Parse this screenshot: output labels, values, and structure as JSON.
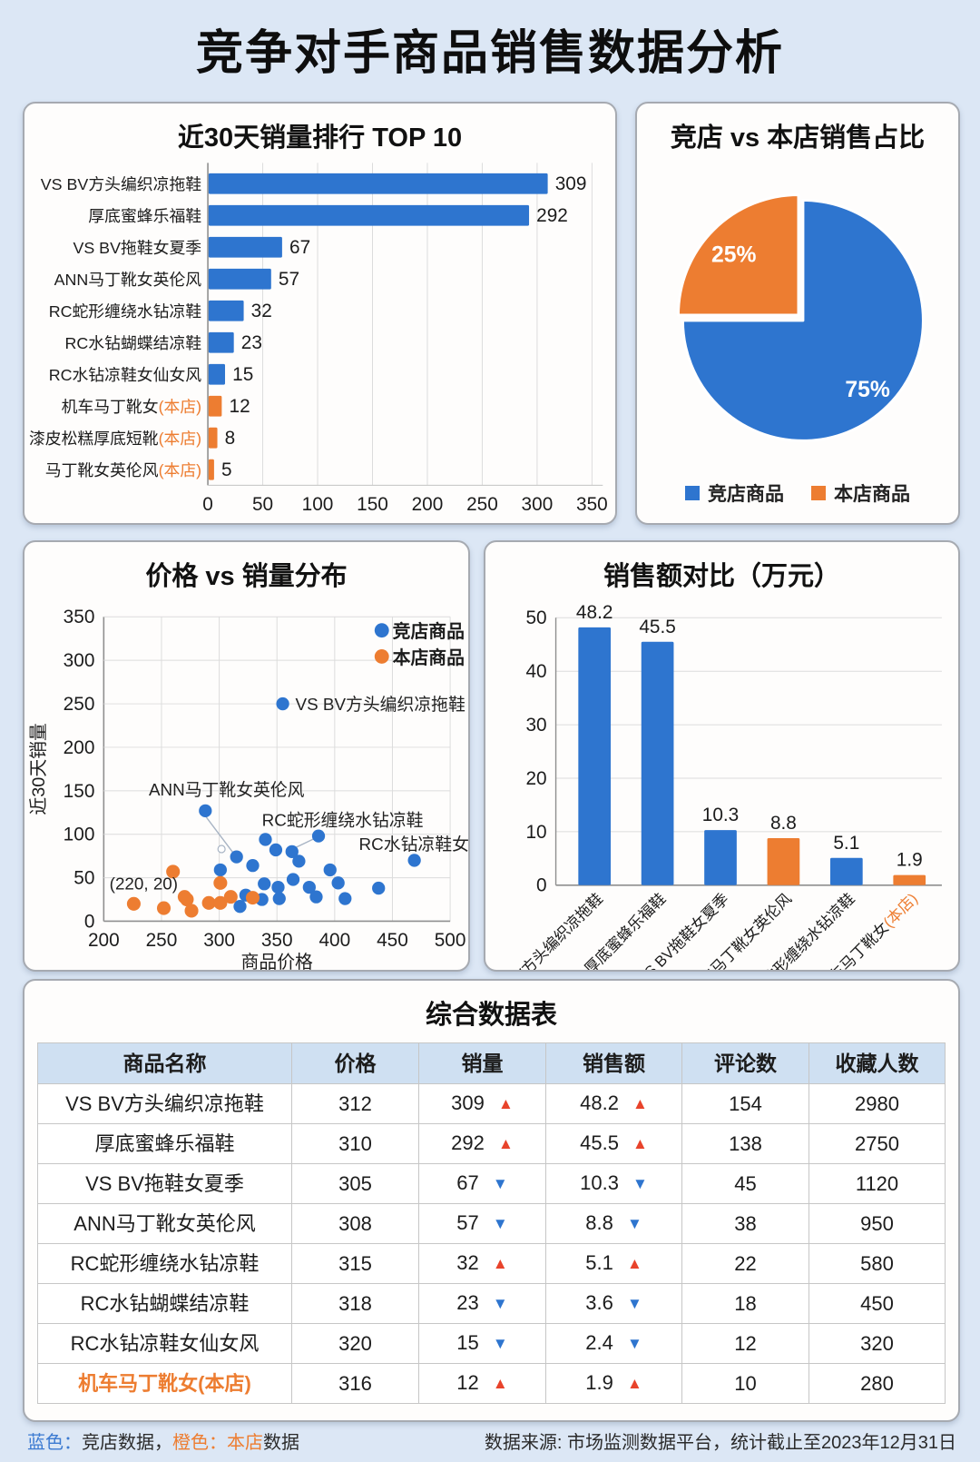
{
  "page": {
    "title": "竞争对手商品销售数据分析",
    "background": "#dce7f5",
    "blue": "#2E75CF",
    "orange": "#ED7D31",
    "red": "#E8432B"
  },
  "chart_data": [
    {
      "id": "sales-top10",
      "type": "bar",
      "orientation": "horizontal",
      "title": "近30天销量排行 TOP 10",
      "xlim": [
        0,
        350
      ],
      "xticks": [
        0,
        50,
        100,
        150,
        200,
        250,
        300,
        350
      ],
      "items": [
        {
          "label": "VS BV方头编织凉拖鞋",
          "value": 309,
          "own": false
        },
        {
          "label": "厚底蜜蜂乐福鞋",
          "value": 292,
          "own": false
        },
        {
          "label": "VS BV拖鞋女夏季",
          "value": 67,
          "own": false
        },
        {
          "label": "ANN马丁靴女英伦风",
          "value": 57,
          "own": false
        },
        {
          "label": "RC蛇形缠绕水钻凉鞋",
          "value": 32,
          "own": false
        },
        {
          "label": "RC水钻蝴蝶结凉鞋",
          "value": 23,
          "own": false
        },
        {
          "label": "RC水钻凉鞋女仙女风",
          "value": 15,
          "own": false
        },
        {
          "label": "机车马丁靴女(本店)",
          "value": 12,
          "own": true
        },
        {
          "label": "漆皮松糕厚底短靴(本店)",
          "value": 8,
          "own": true
        },
        {
          "label": "马丁靴女英伦风(本店)",
          "value": 5,
          "own": true
        }
      ]
    },
    {
      "id": "share-pie",
      "type": "pie",
      "title": "竞店 vs 本店销售占比",
      "slices": [
        {
          "label": "竞店商品",
          "value": 75,
          "pct": "75%",
          "color_key": "blue"
        },
        {
          "label": "本店商品",
          "value": 25,
          "pct": "25%",
          "color_key": "orange",
          "exploded": true
        }
      ]
    },
    {
      "id": "price-sales-scatter",
      "type": "scatter",
      "title": "价格 vs 销量分布",
      "xlabel": "商品价格",
      "ylabel": "近30天销量",
      "xlim": [
        200,
        500
      ],
      "ylim": [
        0,
        350
      ],
      "xticks": [
        200,
        250,
        300,
        350,
        400,
        450,
        500
      ],
      "yticks": [
        0,
        50,
        100,
        150,
        200,
        250,
        300,
        350
      ],
      "series": [
        {
          "name": "竞店商品",
          "color_key": "blue",
          "points": [
            [
              355,
              250
            ],
            [
              288,
              127
            ],
            [
              315,
              74
            ],
            [
              340,
              94
            ],
            [
              349,
              82
            ],
            [
              363,
              80
            ],
            [
              386,
              98
            ],
            [
              329,
              64
            ],
            [
              369,
              69
            ],
            [
              301,
              59
            ],
            [
              396,
              59
            ],
            [
              364,
              48
            ],
            [
              339,
              43
            ],
            [
              403,
              44
            ],
            [
              378,
              39
            ],
            [
              438,
              38
            ],
            [
              351,
              39
            ],
            [
              384,
              28
            ],
            [
              352,
              26
            ],
            [
              323,
              30
            ],
            [
              409,
              26
            ],
            [
              318,
              17
            ],
            [
              337,
              25
            ],
            [
              469,
              70
            ]
          ]
        },
        {
          "name": "本店商品",
          "color_key": "orange",
          "points": [
            [
              260,
              57
            ],
            [
              226,
              20
            ],
            [
              252,
              15
            ],
            [
              270,
              28
            ],
            [
              272,
              25
            ],
            [
              276,
              12
            ],
            [
              291,
              21
            ],
            [
              301,
              44
            ],
            [
              301,
              21
            ],
            [
              310,
              28
            ],
            [
              329,
              27
            ]
          ]
        }
      ],
      "annotations": [
        {
          "text": "VS BV方头编织凉拖鞋",
          "x": 366,
          "y": 250
        },
        {
          "text": "ANN马丁靴女英伦风",
          "x": 239,
          "y": 152
        },
        {
          "text": "RC蛇形缠绕水钻凉鞋",
          "x": 337,
          "y": 117
        },
        {
          "text": "RC水钻凉鞋女仙女风",
          "x": 421,
          "y": 89
        },
        {
          "text": "(220, 20)",
          "x": 205,
          "y": 44
        }
      ],
      "leaders": [
        {
          "from": [
            288,
            121
          ],
          "to": [
            313,
            77
          ],
          "circle": [
            302,
            83
          ]
        },
        {
          "from": [
            362,
            82
          ],
          "to": [
            384,
            96
          ]
        }
      ]
    },
    {
      "id": "revenue-compare",
      "type": "bar",
      "orientation": "vertical",
      "title": "销售额对比（万元）",
      "ylim": [
        0,
        50
      ],
      "yticks": [
        0,
        10,
        20,
        30,
        40,
        50
      ],
      "items": [
        {
          "label": "VS BV方头编织凉拖鞋",
          "value": 48.2,
          "color_key": "blue",
          "own": false
        },
        {
          "label": "厚底蜜蜂乐福鞋",
          "value": 45.5,
          "color_key": "blue",
          "own": false
        },
        {
          "label": "VS BV拖鞋女夏季",
          "value": 10.3,
          "color_key": "blue",
          "own": false
        },
        {
          "label": "ANN马丁靴女英伦风",
          "value": 8.8,
          "color_key": "orange",
          "own": false
        },
        {
          "label": "RC蛇形缠绕水钻凉鞋",
          "value": 5.1,
          "color_key": "blue",
          "own": false
        },
        {
          "label": "机车马丁靴女(本店)",
          "value": 1.9,
          "color_key": "orange",
          "own": true
        }
      ]
    },
    {
      "id": "summary-table",
      "type": "table",
      "title": "综合数据表",
      "headers": [
        "商品名称",
        "价格",
        "销量",
        "销售额",
        "评论数",
        "收藏人数"
      ],
      "rows": [
        {
          "name": "VS BV方头编织凉拖鞋",
          "price": "312",
          "sales": "309",
          "sales_trend": "up",
          "revenue": "48.2",
          "revenue_trend": "up",
          "reviews": "154",
          "favorites": "2980",
          "own": false
        },
        {
          "name": "厚底蜜蜂乐福鞋",
          "price": "310",
          "sales": "292",
          "sales_trend": "up",
          "revenue": "45.5",
          "revenue_trend": "up",
          "reviews": "138",
          "favorites": "2750",
          "own": false
        },
        {
          "name": "VS BV拖鞋女夏季",
          "price": "305",
          "sales": "67",
          "sales_trend": "down",
          "revenue": "10.3",
          "revenue_trend": "down",
          "reviews": "45",
          "favorites": "1120",
          "own": false
        },
        {
          "name": "ANN马丁靴女英伦风",
          "price": "308",
          "sales": "57",
          "sales_trend": "down",
          "revenue": "8.8",
          "revenue_trend": "down",
          "reviews": "38",
          "favorites": "950",
          "own": false
        },
        {
          "name": "RC蛇形缠绕水钻凉鞋",
          "price": "315",
          "sales": "32",
          "sales_trend": "up",
          "revenue": "5.1",
          "revenue_trend": "up",
          "reviews": "22",
          "favorites": "580",
          "own": false
        },
        {
          "name": "RC水钻蝴蝶结凉鞋",
          "price": "318",
          "sales": "23",
          "sales_trend": "down",
          "revenue": "3.6",
          "revenue_trend": "down",
          "reviews": "18",
          "favorites": "450",
          "own": false
        },
        {
          "name": "RC水钻凉鞋女仙女风",
          "price": "320",
          "sales": "15",
          "sales_trend": "down",
          "revenue": "2.4",
          "revenue_trend": "down",
          "reviews": "12",
          "favorites": "320",
          "own": false
        },
        {
          "name": "机车马丁靴女(本店)",
          "price": "316",
          "sales": "12",
          "sales_trend": "up",
          "revenue": "1.9",
          "revenue_trend": "up",
          "reviews": "10",
          "favorites": "280",
          "own": true
        }
      ]
    }
  ],
  "footer": {
    "blue_label": "蓝色：",
    "blue_text": "竞店数据，",
    "orange_label": "橙色：本店",
    "orange_text": "数据",
    "source": "数据来源: 市场监测数据平台，统计截止至2023年12月31日"
  }
}
